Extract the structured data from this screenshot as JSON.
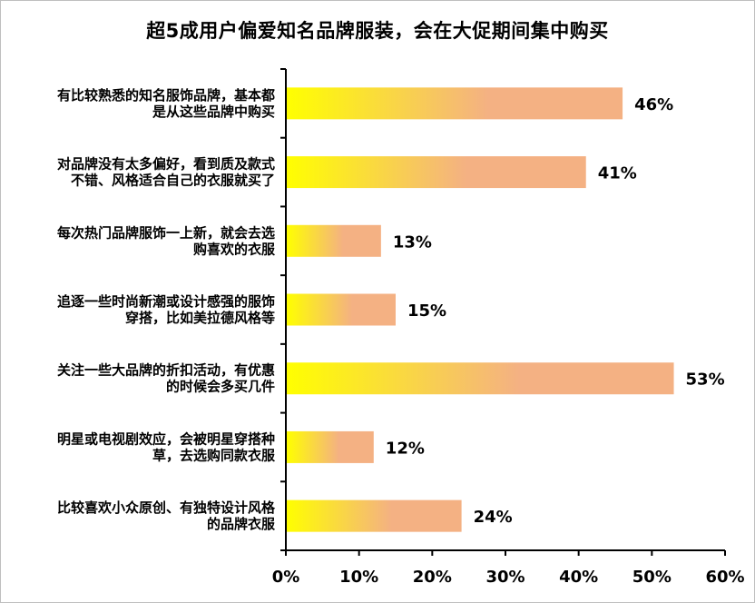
{
  "chart_data": {
    "type": "bar",
    "orientation": "horizontal",
    "title": "超5成用户偏爱知名品牌服装，会在大促期间集中购买",
    "categories": [
      [
        "有比较熟悉的知名服饰品牌，基本都",
        "是从这些品牌中购买"
      ],
      [
        "对品牌没有太多偏好，看到质及款式",
        "不错、风格适合自己的衣服就买了"
      ],
      [
        "每次热门品牌服饰一上新，就会去选",
        "购喜欢的衣服"
      ],
      [
        "追逐一些时尚新潮或设计感强的服饰",
        "穿搭，比如美拉德风格等"
      ],
      [
        "关注一些大品牌的折扣活动，有优惠",
        "的时候会多买几件"
      ],
      [
        "明星或电视剧效应，会被明星穿搭种",
        "草，去选购同款衣服"
      ],
      [
        "比较喜欢小众原创、有独特设计风格",
        "的品牌衣服"
      ]
    ],
    "values": [
      46,
      41,
      13,
      15,
      53,
      12,
      24
    ],
    "value_labels": [
      "46%",
      "41%",
      "13%",
      "15%",
      "53%",
      "12%",
      "24%"
    ],
    "xlim": [
      0,
      60
    ],
    "xticks": [
      0,
      10,
      20,
      30,
      40,
      50,
      60
    ],
    "xtick_labels": [
      "0%",
      "10%",
      "20%",
      "30%",
      "40%",
      "50%",
      "60%"
    ],
    "grid": false,
    "colors": {
      "gradient_start": "#ffff00",
      "gradient_end": "#f4b183",
      "axis": "#000000"
    }
  }
}
